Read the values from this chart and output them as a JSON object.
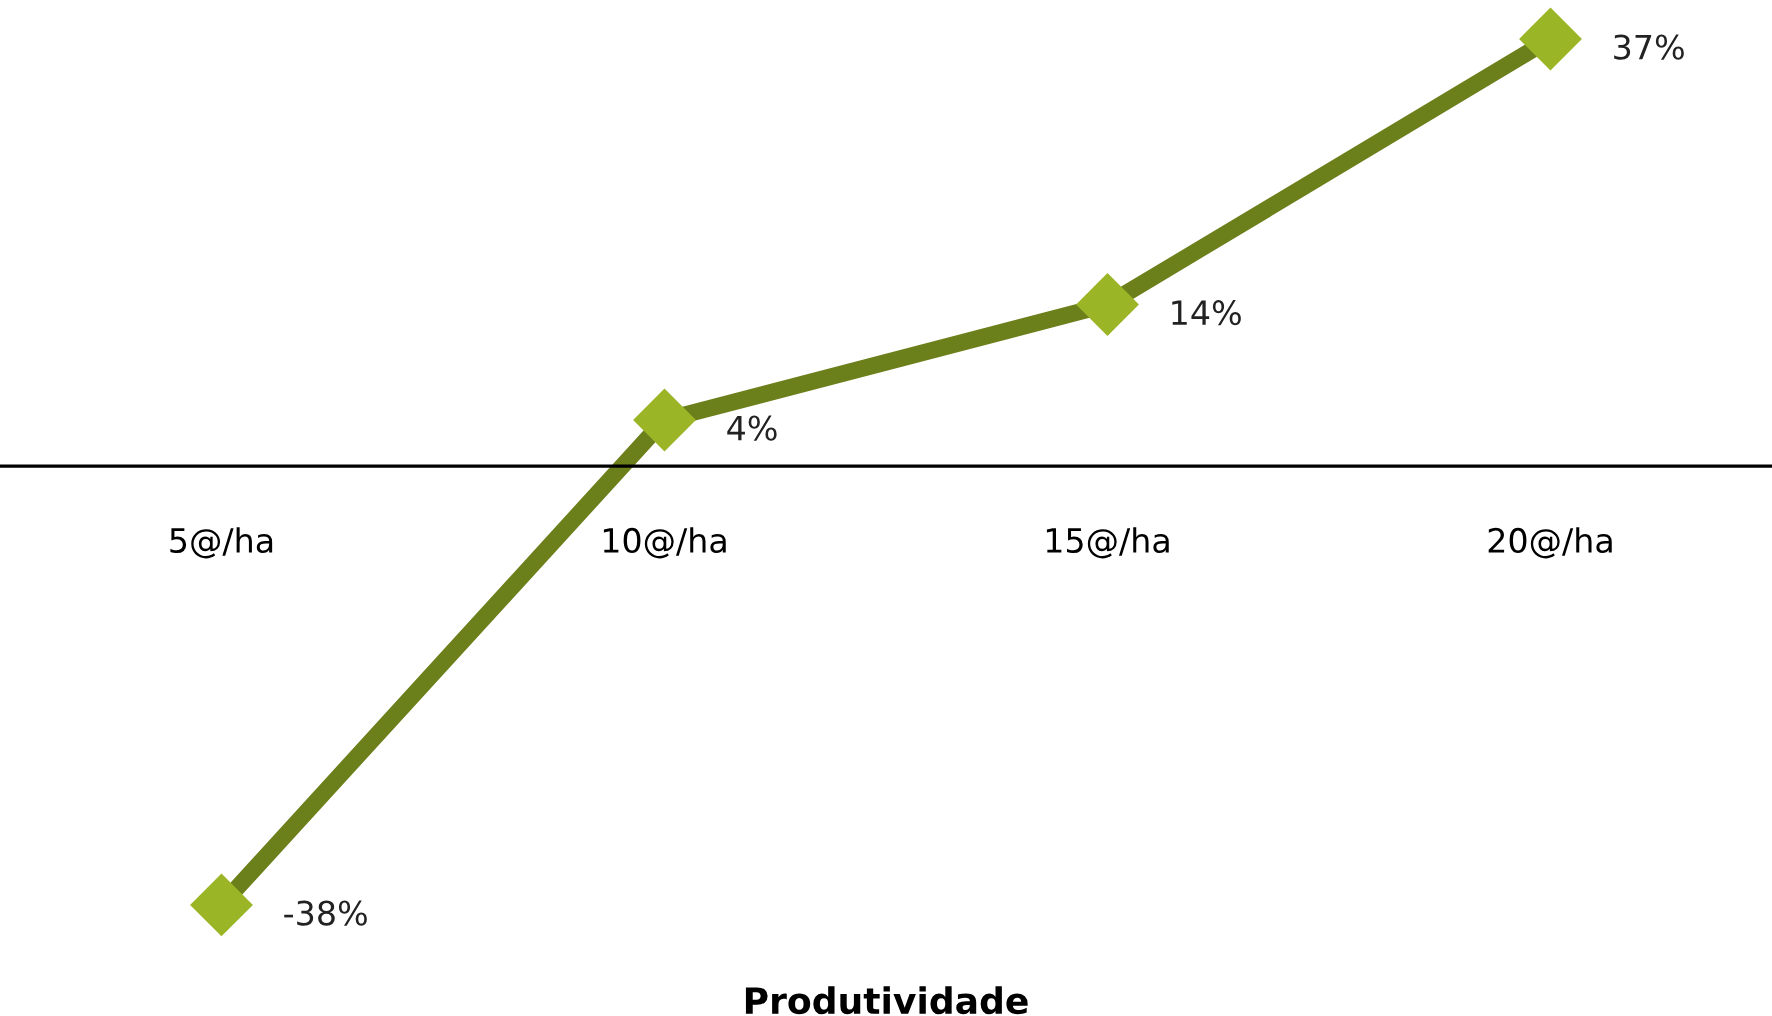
{
  "chart_data": {
    "type": "line",
    "xlabel": "Produtividade",
    "categories": [
      "5@/ha",
      "10@/ha",
      "15@/ha",
      "20@/ha"
    ],
    "series": [
      {
        "color": "#6b7f1a",
        "colors": [
          "#9ab526",
          "#9ab526",
          "#9ab526",
          "#9ab526"
        ],
        "values": [
          -38,
          4,
          14,
          37
        ],
        "value_labels": [
          "-38%",
          "4%",
          "14%",
          "37%"
        ]
      }
    ],
    "tick_labels": "x",
    "marker": "diamond",
    "line_style": "solid",
    "grid": false,
    "legend": false
  }
}
